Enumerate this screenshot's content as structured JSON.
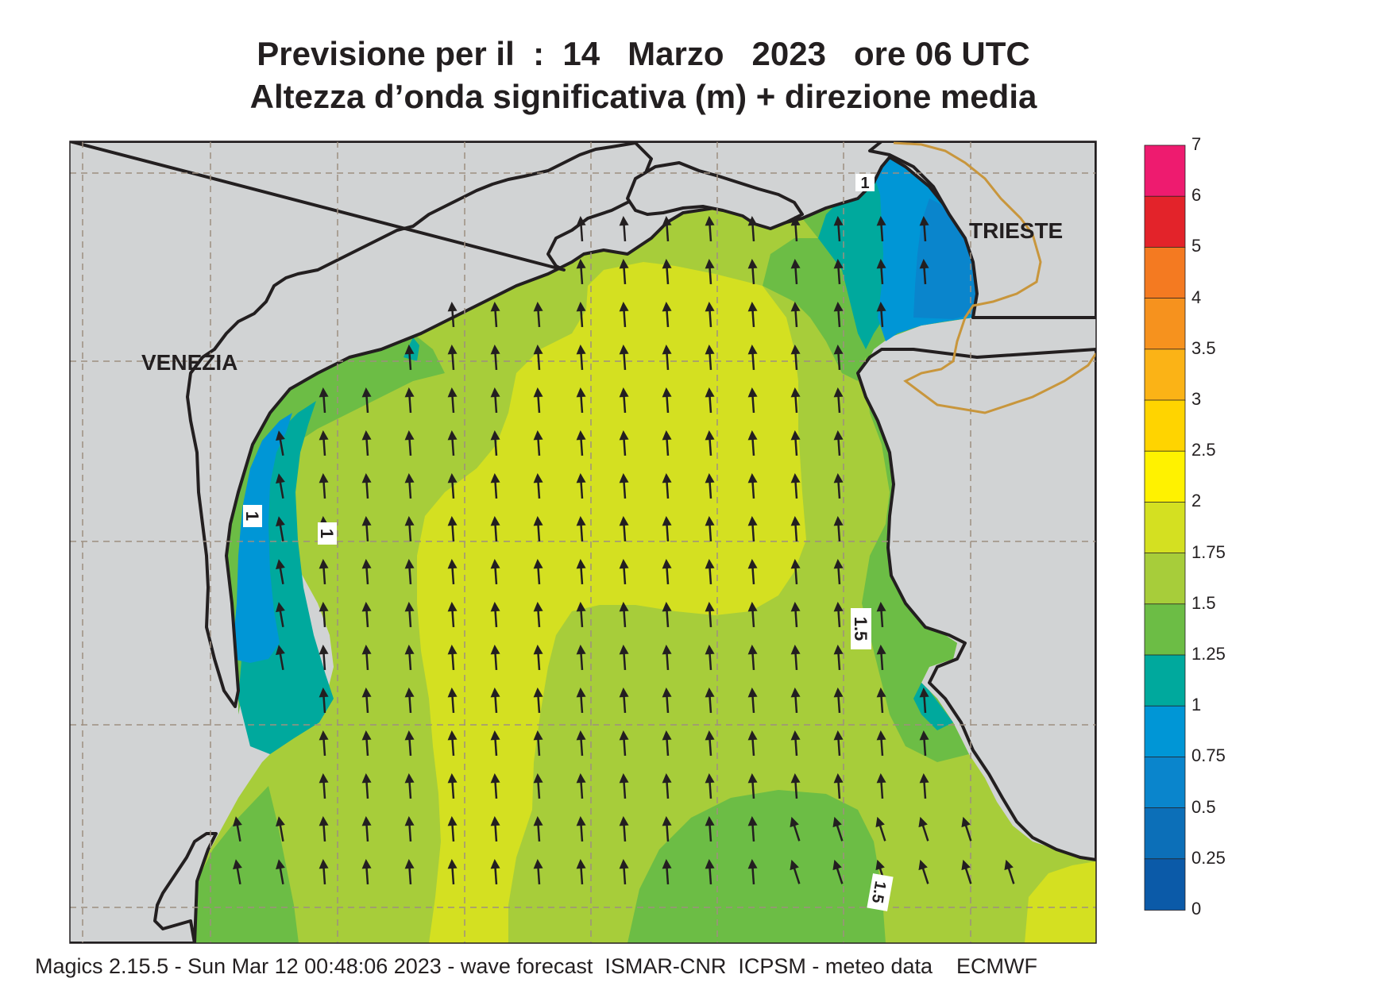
{
  "title_line1": "Previsione per il  :  14   Marzo   2023   ore 06 UTC",
  "title_line2": "Altezza d’onda significativa (m) + direzione media",
  "places": {
    "venezia": "VENEZIA",
    "trieste": "TRIESTE"
  },
  "contour_labels": [
    {
      "id": "c1",
      "text": "1"
    },
    {
      "id": "c2",
      "text": "1"
    },
    {
      "id": "c3",
      "text": "1"
    },
    {
      "id": "c4",
      "text": "1.5"
    },
    {
      "id": "c5",
      "text": "1.5"
    }
  ],
  "colorbar": {
    "unit": "m",
    "ticks": [
      "7",
      "6",
      "5",
      "4",
      "3.5",
      "3",
      "2.5",
      "2",
      "1.75",
      "1.5",
      "1.25",
      "1",
      "0.75",
      "0.5",
      "0.25",
      "0"
    ],
    "colors": [
      "#ee1b6f",
      "#e3232a",
      "#f47a21",
      "#f6921e",
      "#fbb316",
      "#ffd400",
      "#fff200",
      "#d4e021",
      "#a7cd3a",
      "#6cbd45",
      "#00a99d",
      "#0096d6",
      "#0a85cc",
      "#0c6fb8",
      "#0b5aa8"
    ]
  },
  "footer": "Magics 2.15.5 - Sun Mar 12 00:48:06 2023 - wave forecast  ISMAR-CNR  ICPSM - meteo data    ECMWF"
}
